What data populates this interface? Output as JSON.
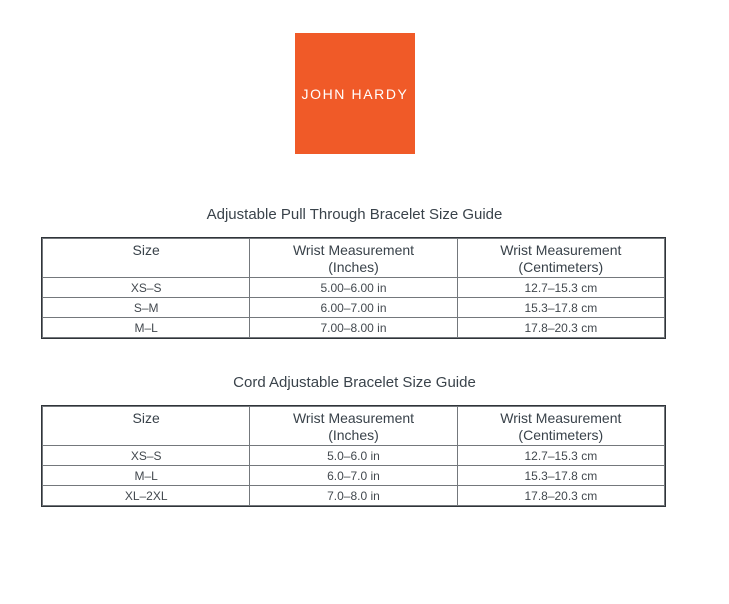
{
  "colors": {
    "brand_orange": "#F05A28",
    "text_dark": "#3A434B",
    "table_border": "#74787C",
    "background": "#FFFFFF"
  },
  "logo": {
    "text": "JOHN HARDY"
  },
  "sections": [
    {
      "title": "Adjustable Pull Through Bracelet Size Guide",
      "table": {
        "headers": [
          {
            "line1": "Size",
            "line2": ""
          },
          {
            "line1": "Wrist Measurement",
            "line2": "(Inches)"
          },
          {
            "line1": "Wrist Measurement",
            "line2": "(Centimeters)"
          }
        ],
        "rows": [
          [
            "XS–S",
            "5.00–6.00 in",
            "12.7–15.3 cm"
          ],
          [
            "S–M",
            "6.00–7.00 in",
            "15.3–17.8 cm"
          ],
          [
            "M–L",
            "7.00–8.00 in",
            "17.8–20.3 cm"
          ]
        ]
      }
    },
    {
      "title": "Cord Adjustable Bracelet Size Guide",
      "table": {
        "headers": [
          {
            "line1": "Size",
            "line2": ""
          },
          {
            "line1": "Wrist Measurement",
            "line2": "(Inches)"
          },
          {
            "line1": "Wrist Measurement",
            "line2": "(Centimeters)"
          }
        ],
        "rows": [
          [
            "XS–S",
            "5.0–6.0 in",
            "12.7–15.3 cm"
          ],
          [
            "M–L",
            "6.0–7.0 in",
            "15.3–17.8 cm"
          ],
          [
            "XL–2XL",
            "7.0–8.0 in",
            "17.8–20.3 cm"
          ]
        ]
      }
    }
  ]
}
